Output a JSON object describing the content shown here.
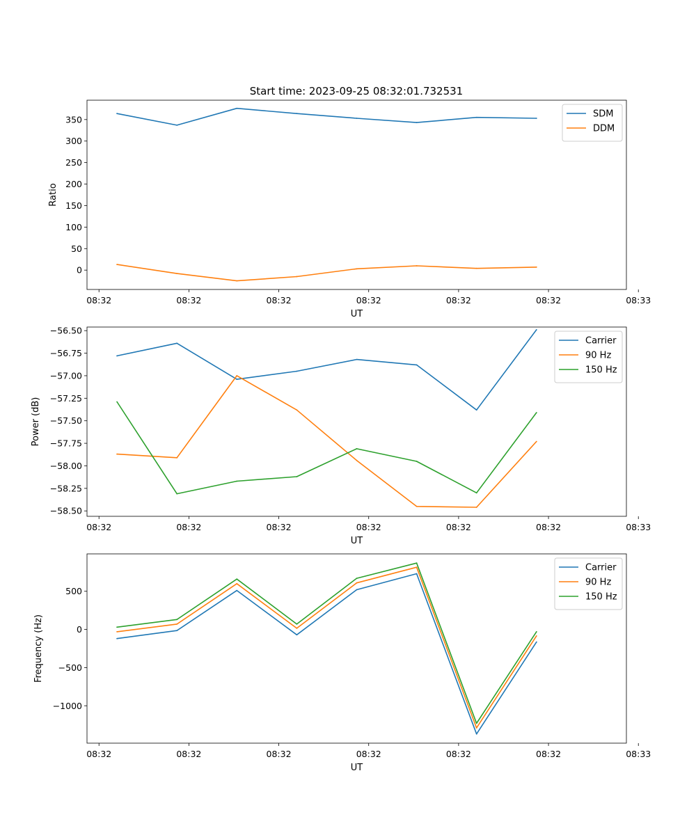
{
  "figure": {
    "title": "Start time: 2023-09-25 08:32:01.732531"
  },
  "chart_data": [
    {
      "type": "line",
      "title": "Start time: 2023-09-25 08:32:01.732531",
      "xlabel": "UT",
      "ylabel": "Ratio",
      "x": [
        0,
        1,
        2,
        3,
        4,
        5,
        6,
        7
      ],
      "xlim": [
        -0.5,
        8.5
      ],
      "xticks": [
        -0.3,
        1.2,
        2.7,
        4.2,
        5.7,
        7.2,
        8.7
      ],
      "xticklabels": [
        "08:32",
        "08:32",
        "08:32",
        "08:32",
        "08:32",
        "08:32",
        "08:33"
      ],
      "ylim": [
        -45,
        395
      ],
      "yticks": [
        0,
        50,
        100,
        150,
        200,
        250,
        300,
        350
      ],
      "yticklabels": [
        "0",
        "50",
        "100",
        "150",
        "200",
        "250",
        "300",
        "350"
      ],
      "legend_position": "upper-right",
      "series": [
        {
          "name": "SDM",
          "color": "#1f77b4",
          "values": [
            364,
            337,
            376,
            364,
            353,
            343,
            355,
            353
          ]
        },
        {
          "name": "DDM",
          "color": "#ff7f0e",
          "values": [
            13,
            -8,
            -25,
            -15,
            3,
            10,
            4,
            7
          ]
        }
      ]
    },
    {
      "type": "line",
      "title": "",
      "xlabel": "UT",
      "ylabel": "Power (dB)",
      "x": [
        0,
        1,
        2,
        3,
        4,
        5,
        6,
        7
      ],
      "xlim": [
        -0.5,
        8.5
      ],
      "xticks": [
        -0.3,
        1.2,
        2.7,
        4.2,
        5.7,
        7.2,
        8.7
      ],
      "xticklabels": [
        "08:32",
        "08:32",
        "08:32",
        "08:32",
        "08:32",
        "08:32",
        "08:33"
      ],
      "ylim": [
        -58.56,
        -56.46
      ],
      "yticks": [
        -58.5,
        -58.25,
        -58.0,
        -57.75,
        -57.5,
        -57.25,
        -57.0,
        -56.75,
        -56.5
      ],
      "yticklabels": [
        "−58.50",
        "−58.25",
        "−58.00",
        "−57.75",
        "−57.50",
        "−57.25",
        "−57.00",
        "−56.75",
        "−56.50"
      ],
      "legend_position": "upper-right",
      "series": [
        {
          "name": "Carrier",
          "color": "#1f77b4",
          "values": [
            -56.78,
            -56.64,
            -57.04,
            -56.95,
            -56.82,
            -56.88,
            -57.38,
            -56.49
          ]
        },
        {
          "name": "90 Hz",
          "color": "#ff7f0e",
          "values": [
            -57.87,
            -57.91,
            -57.0,
            -57.38,
            -57.94,
            -58.45,
            -58.46,
            -57.73
          ]
        },
        {
          "name": "150 Hz",
          "color": "#2ca02c",
          "values": [
            -57.29,
            -58.31,
            -58.17,
            -58.12,
            -57.81,
            -57.95,
            -58.3,
            -57.41
          ]
        }
      ]
    },
    {
      "type": "line",
      "title": "",
      "xlabel": "UT",
      "ylabel": "Frequency (Hz)",
      "x": [
        0,
        1,
        2,
        3,
        4,
        5,
        6,
        7
      ],
      "xlim": [
        -0.5,
        8.5
      ],
      "xticks": [
        -0.3,
        1.2,
        2.7,
        4.2,
        5.7,
        7.2,
        8.7
      ],
      "xticklabels": [
        "08:32",
        "08:32",
        "08:32",
        "08:32",
        "08:32",
        "08:32",
        "08:33"
      ],
      "ylim": [
        -1490,
        990
      ],
      "yticks": [
        -1000,
        -500,
        0,
        500
      ],
      "yticklabels": [
        "−1000",
        "−500",
        "0",
        "500"
      ],
      "legend_position": "upper-right",
      "series": [
        {
          "name": "Carrier",
          "color": "#1f77b4",
          "values": [
            -120,
            -15,
            510,
            -70,
            520,
            730,
            -1370,
            -165
          ]
        },
        {
          "name": "90 Hz",
          "color": "#ff7f0e",
          "values": [
            -30,
            70,
            600,
            15,
            610,
            815,
            -1290,
            -85
          ]
        },
        {
          "name": "150 Hz",
          "color": "#2ca02c",
          "values": [
            30,
            130,
            660,
            70,
            670,
            870,
            -1230,
            -30
          ]
        }
      ]
    }
  ]
}
